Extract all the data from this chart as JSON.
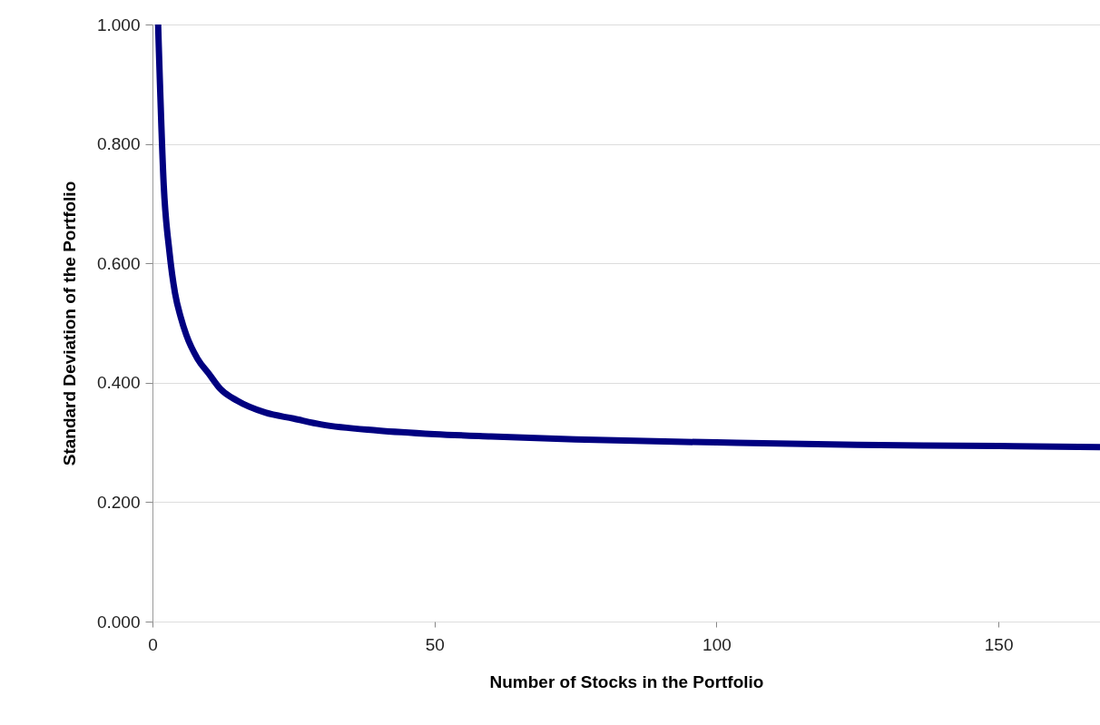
{
  "chart_data": {
    "type": "line",
    "xlabel": "Number of Stocks in the Portfolio",
    "ylabel": "Standard Deviation of the Portfolio",
    "x": [
      1,
      2,
      3,
      4,
      5,
      6,
      8,
      10,
      12,
      15,
      20,
      25,
      30,
      40,
      50,
      60,
      75,
      100,
      125,
      150,
      168
    ],
    "series": [
      {
        "color": "#000080",
        "values": [
          1.0,
          0.73,
          0.62,
          0.55,
          0.51,
          0.48,
          0.44,
          0.415,
          0.39,
          0.37,
          0.35,
          0.34,
          0.33,
          0.32,
          0.314,
          0.31,
          0.305,
          0.3,
          0.296,
          0.294,
          0.292
        ]
      }
    ],
    "xlim": [
      0,
      168
    ],
    "xticks": [
      0,
      50,
      100,
      150
    ],
    "ylim": [
      0,
      1
    ],
    "yticks": [
      {
        "value": 0,
        "label": "0.000"
      },
      {
        "value": 0.2,
        "label": "0.200"
      },
      {
        "value": 0.4,
        "label": "0.400"
      },
      {
        "value": 0.6,
        "label": "0.600"
      },
      {
        "value": 0.8,
        "label": "0.800"
      },
      {
        "value": 1,
        "label": "1.000"
      }
    ],
    "grid": "y",
    "line_style": "solid"
  }
}
